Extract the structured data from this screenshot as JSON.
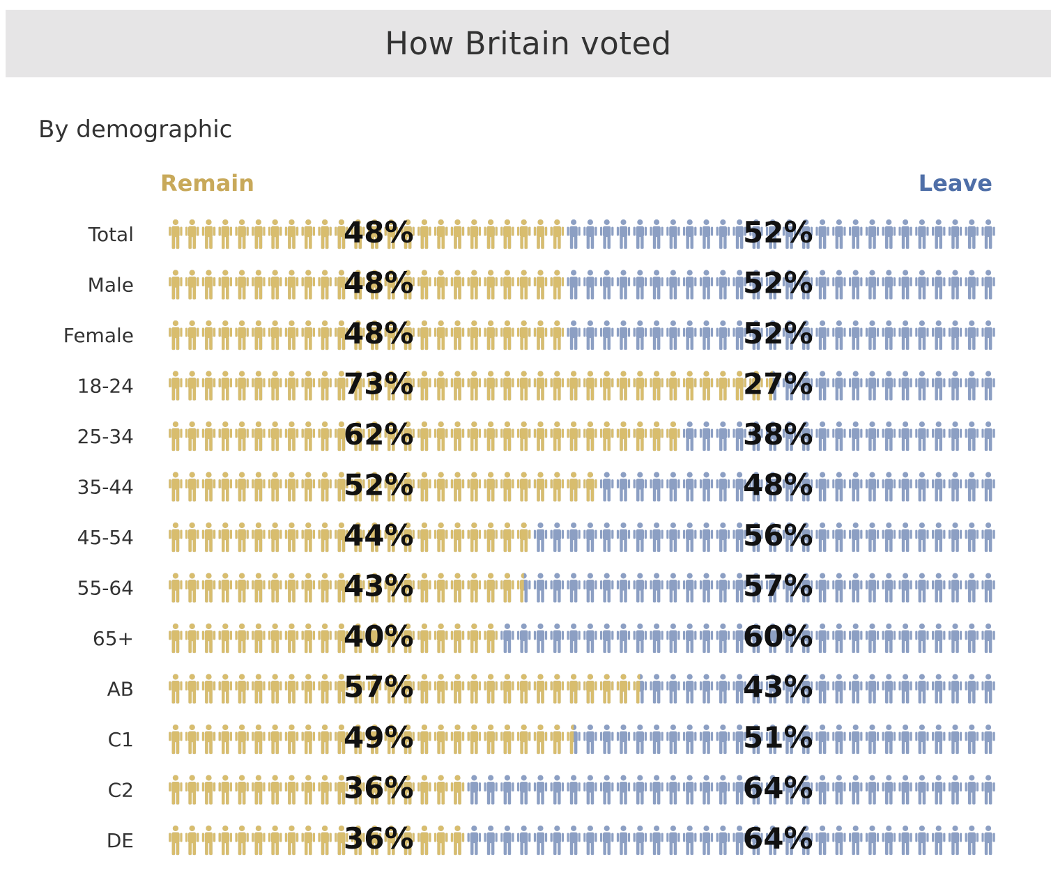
{
  "header": {
    "title": "How Britain voted"
  },
  "section": {
    "subtitle": "By demographic"
  },
  "legend": {
    "remain": "Remain",
    "leave": "Leave"
  },
  "colors": {
    "remain": "#d8bd6e",
    "leave": "#8c9fc3",
    "banner": "#e6e5e6"
  },
  "chart_data": {
    "type": "bar",
    "orientation": "horizontal",
    "stacked": true,
    "title": "How Britain voted",
    "subtitle": "By demographic",
    "categories": [
      "Total",
      "Male",
      "Female",
      "18-24",
      "25-34",
      "35-44",
      "45-54",
      "55-64",
      "65+",
      "AB",
      "C1",
      "C2",
      "DE"
    ],
    "series": [
      {
        "name": "Remain",
        "values": [
          48,
          48,
          48,
          73,
          62,
          52,
          44,
          43,
          40,
          57,
          49,
          36,
          36
        ]
      },
      {
        "name": "Leave",
        "values": [
          52,
          52,
          52,
          27,
          38,
          48,
          56,
          57,
          60,
          43,
          51,
          64,
          64
        ]
      }
    ],
    "value_suffix": "%",
    "xlim": [
      0,
      100
    ],
    "icons_per_row": 50,
    "legend": [
      "Remain",
      "Leave"
    ]
  }
}
